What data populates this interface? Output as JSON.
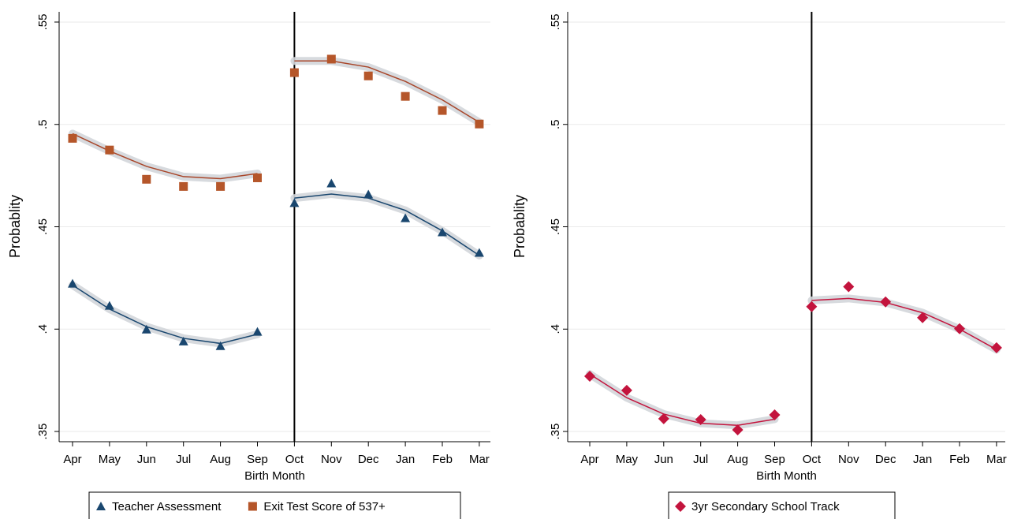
{
  "chart_data": [
    {
      "type": "scatter_fit",
      "y_label": "Probablity",
      "x_label": "Birth Month",
      "categories": [
        "Apr",
        "May",
        "Jun",
        "Jul",
        "Aug",
        "Sep",
        "Oct",
        "Nov",
        "Dec",
        "Jan",
        "Feb",
        "Mar"
      ],
      "vline": "Oct",
      "ylim": [
        0.345,
        0.555
      ],
      "yticks": [
        {
          "value": 0.35,
          "label": ".35"
        },
        {
          "value": 0.4,
          "label": ".4"
        },
        {
          "value": 0.45,
          "label": ".45"
        },
        {
          "value": 0.5,
          "label": ".5"
        },
        {
          "value": 0.55,
          "label": ".55"
        }
      ],
      "grid": true,
      "series": [
        {
          "name": "Teacher Assessment",
          "color": "#1a476f",
          "fit_color": "#1a476f",
          "marker": "triangle",
          "values": [
            0.4222,
            0.4114,
            0.3998,
            0.394,
            0.3917,
            0.3987,
            0.4616,
            0.4712,
            0.4658,
            0.4542,
            0.4473,
            0.4373
          ],
          "fit": [
            0.4215,
            0.4098,
            0.4012,
            0.3955,
            0.393,
            0.3975,
            0.464,
            0.466,
            0.464,
            0.458,
            0.448,
            0.436
          ]
        },
        {
          "name": "Exit Test Score of 537+",
          "color": "#b5562a",
          "fit_color": "#a8462a",
          "marker": "square",
          "values": [
            0.4932,
            0.4875,
            0.4732,
            0.4697,
            0.4697,
            0.4739,
            0.5253,
            0.5319,
            0.5237,
            0.5137,
            0.5068,
            0.5002
          ],
          "fit": [
            0.4955,
            0.487,
            0.4795,
            0.4745,
            0.4735,
            0.476,
            0.531,
            0.531,
            0.528,
            0.521,
            0.512,
            0.501
          ]
        }
      ]
    },
    {
      "type": "scatter_fit",
      "y_label": "Probablity",
      "x_label": "Birth Month",
      "categories": [
        "Apr",
        "May",
        "Jun",
        "Jul",
        "Aug",
        "Sep",
        "Oct",
        "Nov",
        "Dec",
        "Jan",
        "Feb",
        "Mar"
      ],
      "vline": "Oct",
      "ylim": [
        0.345,
        0.555
      ],
      "yticks": [
        {
          "value": 0.35,
          "label": ".35"
        },
        {
          "value": 0.4,
          "label": ".4"
        },
        {
          "value": 0.45,
          "label": ".45"
        },
        {
          "value": 0.5,
          "label": ".5"
        },
        {
          "value": 0.55,
          "label": ".55"
        }
      ],
      "grid": true,
      "series": [
        {
          "name": "3yr Secondary School Track",
          "color": "#c3143d",
          "fit_color": "#c3143d",
          "marker": "diamond",
          "values": [
            0.377,
            0.3701,
            0.3562,
            0.3558,
            0.3508,
            0.3581,
            0.411,
            0.4207,
            0.4133,
            0.4056,
            0.4002,
            0.3909
          ],
          "fit": [
            0.378,
            0.3665,
            0.3585,
            0.354,
            0.353,
            0.356,
            0.414,
            0.415,
            0.413,
            0.408,
            0.4,
            0.39
          ]
        }
      ]
    }
  ]
}
